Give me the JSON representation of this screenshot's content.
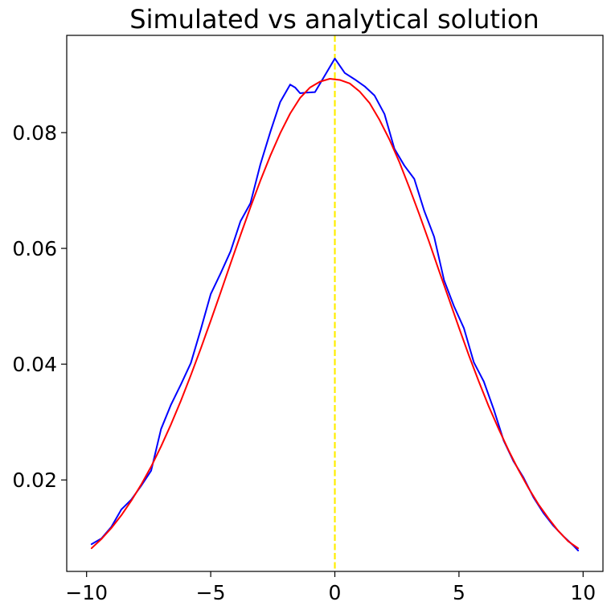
{
  "chart_data": {
    "type": "line",
    "title": "Simulated vs analytical solution",
    "xlabel": "",
    "ylabel": "",
    "xlim": [
      -10.8,
      10.8
    ],
    "ylim": [
      0.0042,
      0.0968
    ],
    "xticks": [
      -10,
      -5,
      0,
      5,
      10
    ],
    "xtick_labels": [
      "−10",
      "−5",
      "0",
      "5",
      "10"
    ],
    "yticks": [
      0.02,
      0.04,
      0.06,
      0.08
    ],
    "ytick_labels": [
      "0.02",
      "0.04",
      "0.06",
      "0.08"
    ],
    "grid": false,
    "legend": null,
    "vline": {
      "x": 0,
      "style": "dashed",
      "color": "#ffee00"
    },
    "series": [
      {
        "color": "#0000ff",
        "x": [
          -9.8,
          -9.4,
          -9.0,
          -8.6,
          -8.2,
          -7.8,
          -7.4,
          -7.0,
          -6.6,
          -6.2,
          -5.8,
          -5.4,
          -5.0,
          -4.6,
          -4.2,
          -3.8,
          -3.4,
          -3.0,
          -2.6,
          -2.2,
          -1.8,
          -1.6,
          -1.4,
          -1.2,
          -0.8,
          -0.4,
          0.0,
          0.4,
          0.8,
          1.2,
          1.6,
          2.0,
          2.4,
          2.8,
          3.2,
          3.6,
          4.0,
          4.4,
          4.8,
          5.2,
          5.6,
          6.0,
          6.4,
          6.8,
          7.2,
          7.6,
          8.0,
          8.4,
          8.8,
          9.2,
          9.6,
          9.8
        ],
        "y": [
          0.0089,
          0.0099,
          0.0119,
          0.0149,
          0.0166,
          0.019,
          0.0216,
          0.0288,
          0.033,
          0.0365,
          0.0402,
          0.046,
          0.0521,
          0.0557,
          0.0595,
          0.0647,
          0.0678,
          0.0745,
          0.0801,
          0.0853,
          0.0883,
          0.0878,
          0.0868,
          0.0869,
          0.087,
          0.0899,
          0.0928,
          0.0903,
          0.0892,
          0.088,
          0.0864,
          0.0832,
          0.0772,
          0.0743,
          0.072,
          0.0665,
          0.062,
          0.0545,
          0.05,
          0.0462,
          0.0403,
          0.037,
          0.0322,
          0.0268,
          0.0232,
          0.0204,
          0.017,
          0.0143,
          0.0121,
          0.0103,
          0.0087,
          0.0078
        ]
      },
      {
        "color": "#ff0000",
        "x": [
          -9.8,
          -9.4,
          -9.0,
          -8.6,
          -8.2,
          -7.8,
          -7.4,
          -7.0,
          -6.6,
          -6.2,
          -5.8,
          -5.4,
          -5.0,
          -4.6,
          -4.2,
          -3.8,
          -3.4,
          -3.0,
          -2.6,
          -2.2,
          -1.8,
          -1.4,
          -1.0,
          -0.6,
          -0.2,
          0.2,
          0.6,
          1.0,
          1.4,
          1.8,
          2.2,
          2.6,
          3.0,
          3.4,
          3.8,
          4.2,
          4.6,
          5.0,
          5.4,
          5.8,
          6.2,
          6.6,
          7.0,
          7.4,
          7.8,
          8.2,
          8.6,
          9.0,
          9.4,
          9.8
        ],
        "y": [
          0.0082,
          0.0098,
          0.0117,
          0.0139,
          0.0164,
          0.0192,
          0.0223,
          0.0258,
          0.0296,
          0.0337,
          0.0381,
          0.0427,
          0.0475,
          0.0524,
          0.0574,
          0.0623,
          0.0671,
          0.0717,
          0.076,
          0.0799,
          0.0833,
          0.086,
          0.0878,
          0.0888,
          0.0893,
          0.0891,
          0.0885,
          0.0871,
          0.0851,
          0.0822,
          0.0788,
          0.0749,
          0.0705,
          0.0659,
          0.0611,
          0.0561,
          0.0512,
          0.0463,
          0.0415,
          0.037,
          0.0327,
          0.0288,
          0.0251,
          0.0217,
          0.0186,
          0.0158,
          0.0134,
          0.0112,
          0.0094,
          0.0082
        ]
      }
    ]
  }
}
